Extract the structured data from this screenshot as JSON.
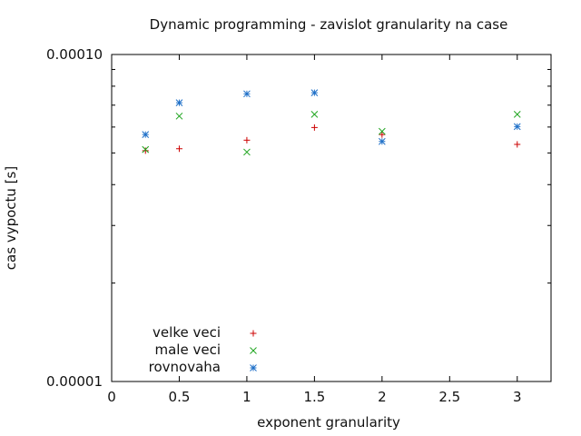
{
  "chart_data": {
    "type": "scatter",
    "title": "Dynamic programming - zavislot granularity na case",
    "xlabel": "exponent granularity",
    "ylabel": "cas vypoctu [s]",
    "xlim": [
      0,
      3.25
    ],
    "ylim": [
      1e-05,
      0.0001
    ],
    "yscale": "log",
    "grid": false,
    "legend_position": "bottom-left",
    "x_ticks": [
      0,
      0.5,
      1,
      1.5,
      2,
      2.5,
      3
    ],
    "x_tick_labels": [
      "0",
      "0.5",
      "1",
      "1.5",
      "2",
      "2.5",
      "3"
    ],
    "y_ticks": [
      1e-05,
      0.0001
    ],
    "y_tick_labels": [
      "0.00001",
      "0.00010"
    ],
    "series": [
      {
        "name": "velke veci",
        "marker": "plus",
        "color": "#cc0000",
        "x": [
          0.25,
          0.5,
          1,
          1.5,
          2,
          3
        ],
        "y": [
          5.08e-05,
          5.15e-05,
          5.47e-05,
          5.98e-05,
          5.69e-05,
          5.31e-05
        ]
      },
      {
        "name": "male veci",
        "marker": "cross",
        "color": "#1fa51f",
        "x": [
          0.25,
          0.5,
          1,
          2,
          1.5,
          3
        ],
        "y": [
          5.12e-05,
          6.48e-05,
          5.03e-05,
          5.82e-05,
          6.56e-05,
          6.56e-05
        ]
      },
      {
        "name": "rovnovaha",
        "marker": "star",
        "color": "#1f70c8",
        "x": [
          0.25,
          0.5,
          1,
          1.5,
          2,
          3
        ],
        "y": [
          5.69e-05,
          7.12e-05,
          7.58e-05,
          7.64e-05,
          5.42e-05,
          6.02e-05
        ]
      }
    ]
  }
}
